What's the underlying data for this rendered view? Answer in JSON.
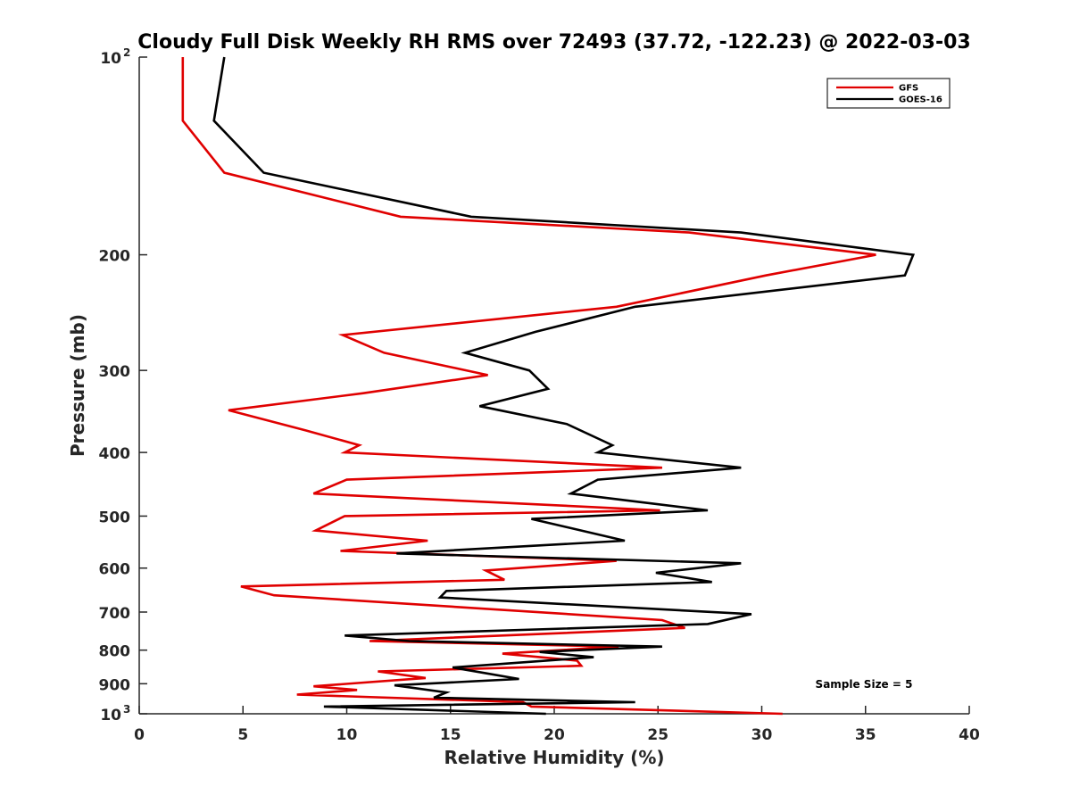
{
  "chart_data": {
    "type": "line",
    "title": "Cloudy Full Disk Weekly RH RMS over 72493 (37.72, -122.23) @ 2022-03-03",
    "xlabel": "Relative Humidity (%)",
    "ylabel": "Pressure (mb)",
    "xlim": [
      0,
      40
    ],
    "ylim": [
      100,
      1000
    ],
    "y_scale": "log",
    "y_reversed": true,
    "grid": false,
    "legend_position": "top-right",
    "x_ticks": [
      "0",
      "5",
      "10",
      "15",
      "20",
      "25",
      "30",
      "35",
      "40"
    ],
    "y_ticks": [
      {
        "value": 100,
        "label": "10",
        "exp": "2"
      },
      {
        "value": 200,
        "label": "200",
        "exp": ""
      },
      {
        "value": 300,
        "label": "300",
        "exp": ""
      },
      {
        "value": 400,
        "label": "400",
        "exp": ""
      },
      {
        "value": 500,
        "label": "500",
        "exp": ""
      },
      {
        "value": 600,
        "label": "600",
        "exp": ""
      },
      {
        "value": 700,
        "label": "700",
        "exp": ""
      },
      {
        "value": 800,
        "label": "800",
        "exp": ""
      },
      {
        "value": 900,
        "label": "900",
        "exp": ""
      },
      {
        "value": 1000,
        "label": "10",
        "exp": "3"
      }
    ],
    "annotation": "Sample Size = 5",
    "series": [
      {
        "name": "GFS",
        "color": "#e00000",
        "points": [
          [
            2.1,
            100
          ],
          [
            2.1,
            125
          ],
          [
            4.1,
            150
          ],
          [
            12.6,
            175
          ],
          [
            26.5,
            185
          ],
          [
            35.5,
            200
          ],
          [
            30.2,
            215
          ],
          [
            23.0,
            240
          ],
          [
            9.8,
            265
          ],
          [
            11.8,
            282
          ],
          [
            16.8,
            305
          ],
          [
            10.8,
            325
          ],
          [
            4.3,
            345
          ],
          [
            8.0,
            370
          ],
          [
            10.6,
            390
          ],
          [
            9.9,
            400
          ],
          [
            25.2,
            422
          ],
          [
            10.0,
            440
          ],
          [
            8.4,
            462
          ],
          [
            25.1,
            490
          ],
          [
            9.9,
            500
          ],
          [
            8.5,
            526
          ],
          [
            13.9,
            545
          ],
          [
            9.7,
            565
          ],
          [
            23.0,
            585
          ],
          [
            16.7,
            605
          ],
          [
            17.6,
            625
          ],
          [
            4.9,
            640
          ],
          [
            6.5,
            660
          ],
          [
            25.2,
            720
          ],
          [
            26.3,
            740
          ],
          [
            11.1,
            775
          ],
          [
            23.1,
            790
          ],
          [
            17.5,
            810
          ],
          [
            21.1,
            830
          ],
          [
            21.3,
            845
          ],
          [
            11.5,
            862
          ],
          [
            13.8,
            882
          ],
          [
            8.4,
            908
          ],
          [
            10.5,
            920
          ],
          [
            7.6,
            935
          ],
          [
            18.5,
            960
          ],
          [
            18.9,
            975
          ],
          [
            31.0,
            1000
          ]
        ]
      },
      {
        "name": "GOES-16",
        "color": "#000000",
        "points": [
          [
            4.1,
            100
          ],
          [
            3.6,
            125
          ],
          [
            6.0,
            150
          ],
          [
            16.0,
            175
          ],
          [
            29.0,
            185
          ],
          [
            37.3,
            200
          ],
          [
            36.9,
            215
          ],
          [
            23.9,
            240
          ],
          [
            19.1,
            262
          ],
          [
            15.7,
            282
          ],
          [
            18.8,
            300
          ],
          [
            19.7,
            320
          ],
          [
            16.4,
            340
          ],
          [
            20.6,
            362
          ],
          [
            22.8,
            390
          ],
          [
            22.1,
            400
          ],
          [
            29.0,
            422
          ],
          [
            22.1,
            440
          ],
          [
            20.8,
            462
          ],
          [
            27.4,
            490
          ],
          [
            18.9,
            505
          ],
          [
            23.4,
            545
          ],
          [
            12.4,
            570
          ],
          [
            29.0,
            590
          ],
          [
            24.9,
            610
          ],
          [
            27.6,
            630
          ],
          [
            14.8,
            650
          ],
          [
            14.5,
            665
          ],
          [
            29.5,
            705
          ],
          [
            27.4,
            730
          ],
          [
            9.9,
            760
          ],
          [
            13.0,
            775
          ],
          [
            25.2,
            790
          ],
          [
            19.3,
            805
          ],
          [
            21.9,
            820
          ],
          [
            15.1,
            850
          ],
          [
            18.3,
            885
          ],
          [
            12.3,
            905
          ],
          [
            14.8,
            928
          ],
          [
            14.2,
            945
          ],
          [
            23.9,
            960
          ],
          [
            8.9,
            975
          ],
          [
            19.6,
            1000
          ]
        ]
      }
    ]
  }
}
